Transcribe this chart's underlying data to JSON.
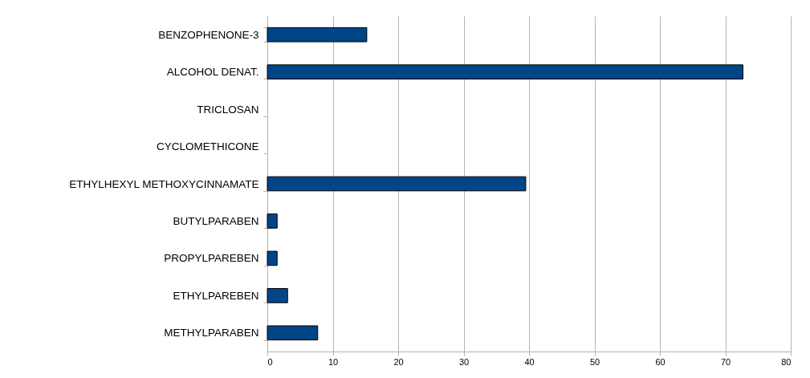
{
  "chart_data": {
    "type": "bar",
    "orientation": "horizontal",
    "categories": [
      "BENZOPHENONE-3",
      "ALCOHOL DENAT.",
      "TRICLOSAN",
      "CYCLOMETHICONE",
      "ETHYLHEXYL METHOXYCINNAMATE",
      "BUTYLPARABEN",
      "PROPYLPAREBEN",
      "ETHYLPAREBEN",
      "METHYLPARABEN"
    ],
    "values": [
      15.2,
      72.7,
      0,
      0,
      39.5,
      1.5,
      1.5,
      3.1,
      7.7
    ],
    "color": "#004586",
    "xlim": [
      0,
      80
    ],
    "xticks": [
      0,
      10,
      20,
      30,
      40,
      50,
      60,
      70,
      80
    ],
    "grid": "x"
  }
}
